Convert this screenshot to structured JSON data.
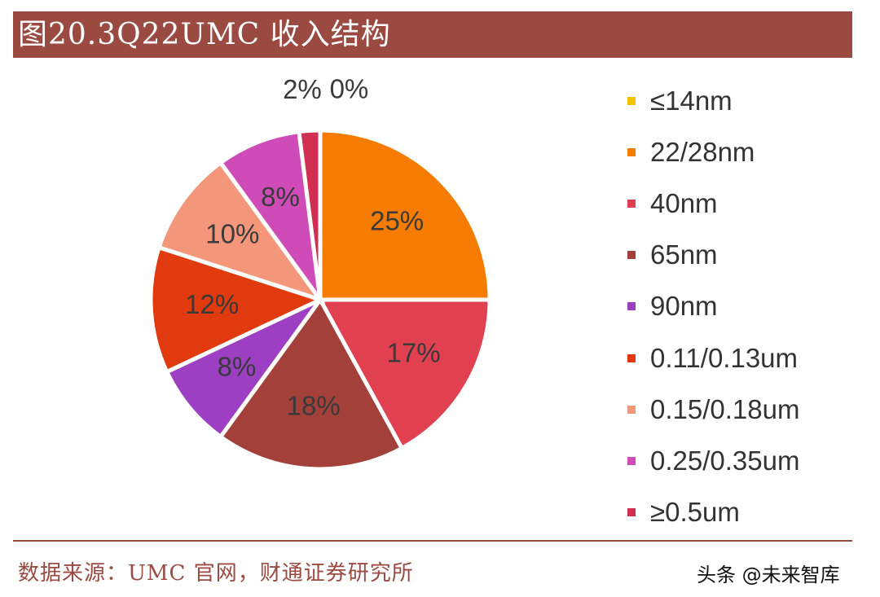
{
  "header": {
    "title": "图20.3Q22UMC 收入结构"
  },
  "chart_data": {
    "type": "pie",
    "slices": [
      {
        "label": "≤14nm",
        "value": 0,
        "value_label": "0%",
        "color": "#f2c200"
      },
      {
        "label": "22/28nm",
        "value": 25,
        "value_label": "25%",
        "color": "#f57c00"
      },
      {
        "label": "40nm",
        "value": 17,
        "value_label": "17%",
        "color": "#e0404f"
      },
      {
        "label": "65nm",
        "value": 18,
        "value_label": "18%",
        "color": "#a4403a"
      },
      {
        "label": "90nm",
        "value": 8,
        "value_label": "8%",
        "color": "#9c3fc2"
      },
      {
        "label": "0.11/0.13um",
        "value": 12,
        "value_label": "12%",
        "color": "#e03a0e"
      },
      {
        "label": "0.15/0.18um",
        "value": 10,
        "value_label": "10%",
        "color": "#f4967a"
      },
      {
        "label": "0.25/0.35um",
        "value": 8,
        "value_label": "8%",
        "color": "#cf4bb7"
      },
      {
        "label": "≥0.5um",
        "value": 2,
        "value_label": "2%",
        "color": "#d12e52"
      }
    ],
    "legend_position": "right"
  },
  "footer": {
    "source": "数据来源：UMC 官网，财通证券研究所",
    "watermark": "头条 @未来智库"
  }
}
